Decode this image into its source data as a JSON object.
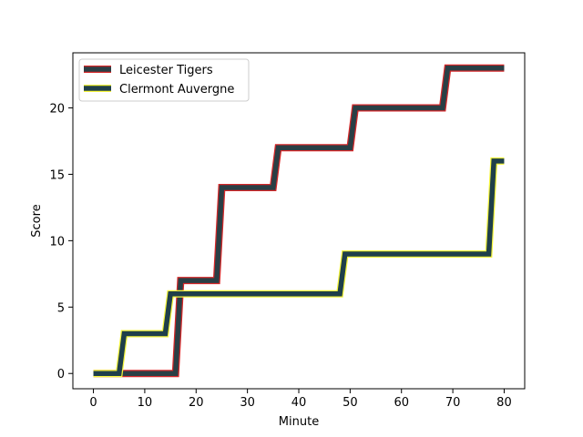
{
  "chart_data": {
    "type": "line",
    "xlabel": "Minute",
    "ylabel": "Score",
    "xlim": [
      -4,
      84
    ],
    "ylim": [
      -1.15,
      24.15
    ],
    "xticks": [
      0,
      10,
      20,
      30,
      40,
      50,
      60,
      70,
      80
    ],
    "yticks": [
      0,
      5,
      10,
      15,
      20
    ],
    "legend": "top-left",
    "grid": false,
    "series": [
      {
        "name": "Leicester Tigers",
        "color": "#2a3f45",
        "edge_color": "#d62728",
        "x": [
          0,
          16,
          17,
          24,
          25,
          35,
          36,
          50,
          51,
          68,
          69,
          80
        ],
        "y": [
          0,
          0,
          7,
          7,
          14,
          14,
          17,
          17,
          20,
          20,
          23,
          23
        ]
      },
      {
        "name": "Clermont Auvergne",
        "color": "#1f3f4a",
        "edge_color": "#f5f53b",
        "x": [
          0,
          5,
          6,
          14,
          15,
          48,
          49,
          77,
          78,
          80
        ],
        "y": [
          0,
          0,
          3,
          3,
          6,
          6,
          9,
          9,
          16,
          16
        ]
      }
    ]
  }
}
